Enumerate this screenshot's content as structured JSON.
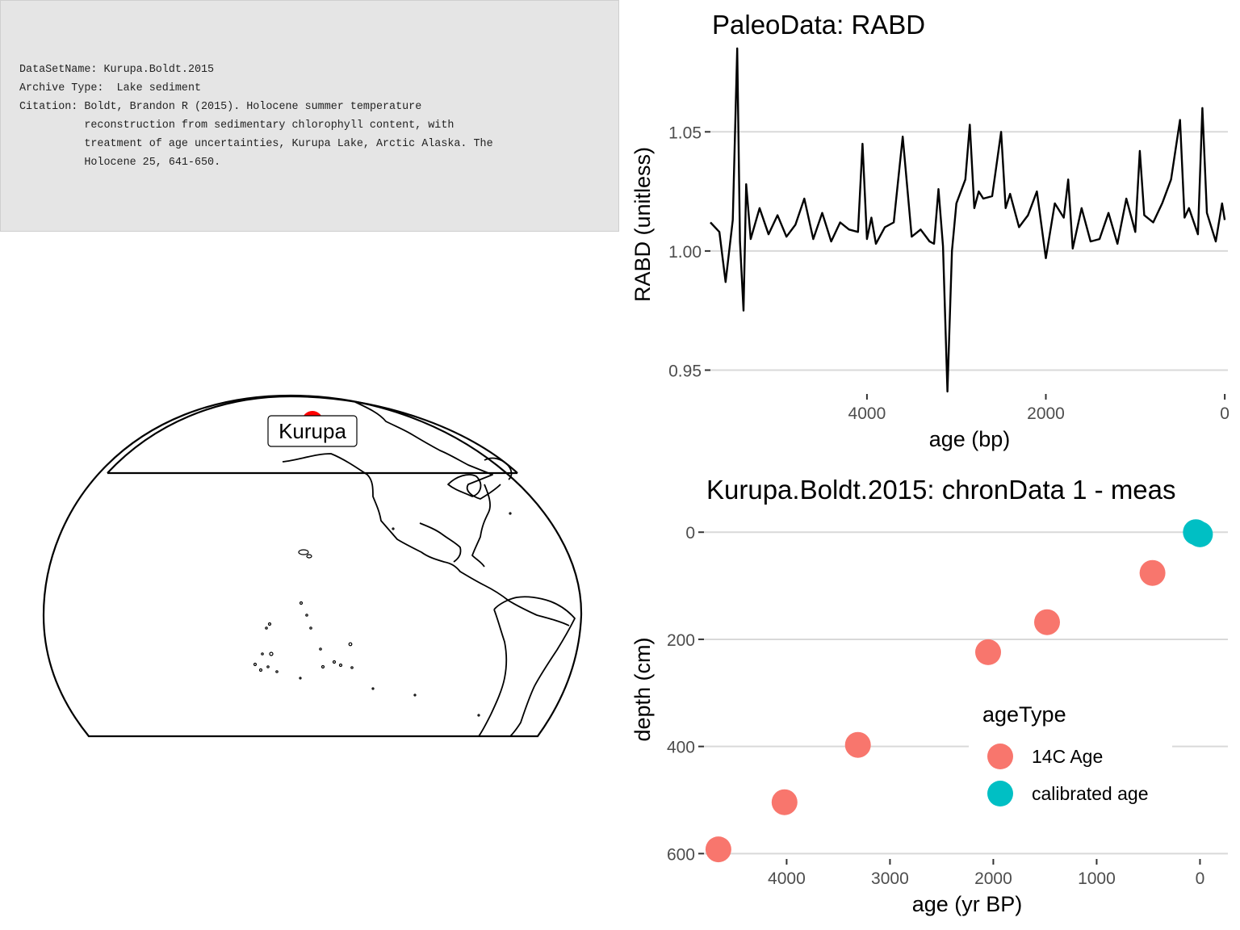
{
  "info": {
    "dataset_label": "DataSetName:",
    "dataset_name": "Kurupa.Boldt.2015",
    "archive_label": "Archive Type:",
    "archive_type": "Lake sediment",
    "citation_label": "Citation:",
    "citation_lines": [
      "Boldt, Brandon R (2015). Holocene summer temperature",
      "reconstruction from sedimentary chlorophyll content, with",
      "treatment of age uncertainties, Kurupa Lake, Arctic Alaska. The",
      "Holocene 25, 641-650."
    ]
  },
  "map": {
    "site_label": "Kurupa",
    "site_color": "#ff0000"
  },
  "chart_data": [
    {
      "type": "line",
      "title": "PaleoData: RABD",
      "xlabel": "age (bp)",
      "ylabel": "RABD (unitless)",
      "x_reversed": true,
      "xlim": [
        5750,
        -35
      ],
      "ylim": [
        0.94,
        1.085
      ],
      "x_ticks": [
        4000,
        2000,
        0
      ],
      "y_ticks": [
        0.95,
        1.0,
        1.05
      ],
      "y_tick_labels": [
        "0.95",
        "1.00",
        "1.05"
      ],
      "line_color": "#000000",
      "grid": "horizontal",
      "series": [
        {
          "x": [
            5750,
            5650,
            5580,
            5500,
            5450,
            5420,
            5380,
            5350,
            5300,
            5200,
            5100,
            5000,
            4900,
            4800,
            4700,
            4600,
            4500,
            4400,
            4300,
            4200,
            4100,
            4050,
            4000,
            3950,
            3900,
            3800,
            3700,
            3600,
            3500,
            3400,
            3300,
            3250,
            3200,
            3150,
            3100,
            3050,
            3000,
            2900,
            2850,
            2800,
            2750,
            2700,
            2600,
            2500,
            2450,
            2400,
            2300,
            2200,
            2100,
            2000,
            1900,
            1800,
            1750,
            1700,
            1600,
            1500,
            1400,
            1300,
            1200,
            1100,
            1000,
            950,
            900,
            800,
            700,
            600,
            500,
            450,
            400,
            300,
            250,
            200,
            100,
            30,
            0
          ],
          "y": [
            1.012,
            1.008,
            0.987,
            1.013,
            1.085,
            1.004,
            0.975,
            1.028,
            1.005,
            1.018,
            1.007,
            1.015,
            1.006,
            1.011,
            1.022,
            1.005,
            1.016,
            1.004,
            1.012,
            1.009,
            1.008,
            1.045,
            1.005,
            1.014,
            1.003,
            1.01,
            1.012,
            1.048,
            1.006,
            1.009,
            1.004,
            1.003,
            1.026,
            1.002,
            0.941,
            1.0,
            1.02,
            1.03,
            1.053,
            1.018,
            1.025,
            1.022,
            1.023,
            1.05,
            1.018,
            1.024,
            1.01,
            1.015,
            1.025,
            0.997,
            1.02,
            1.014,
            1.03,
            1.001,
            1.018,
            1.004,
            1.005,
            1.016,
            1.003,
            1.022,
            1.008,
            1.042,
            1.015,
            1.012,
            1.02,
            1.03,
            1.055,
            1.014,
            1.018,
            1.007,
            1.06,
            1.016,
            1.004,
            1.02,
            1.013
          ]
        }
      ]
    },
    {
      "type": "scatter",
      "title": "Kurupa.Boldt.2015: chronData 1 - meas",
      "xlabel": "age (yr BP)",
      "ylabel": "depth (cm)",
      "x_reversed": true,
      "y_reversed": true,
      "xlim": [
        4800,
        -270
      ],
      "ylim": [
        610,
        -35
      ],
      "x_ticks": [
        4000,
        3000,
        2000,
        1000,
        0
      ],
      "y_ticks": [
        0,
        200,
        400,
        600
      ],
      "grid": "horizontal",
      "legend_position": "inside-right",
      "legend_title": "ageType",
      "series": [
        {
          "name": "14C Age",
          "color": "#f8766d",
          "x": [
            4660,
            4020,
            3310,
            2050,
            1480,
            460
          ],
          "y": [
            592,
            504,
            397,
            224,
            168,
            76
          ]
        },
        {
          "name": "calibrated age",
          "color": "#00bfc4",
          "x": [
            0,
            40
          ],
          "y": [
            4,
            0
          ]
        }
      ]
    }
  ]
}
